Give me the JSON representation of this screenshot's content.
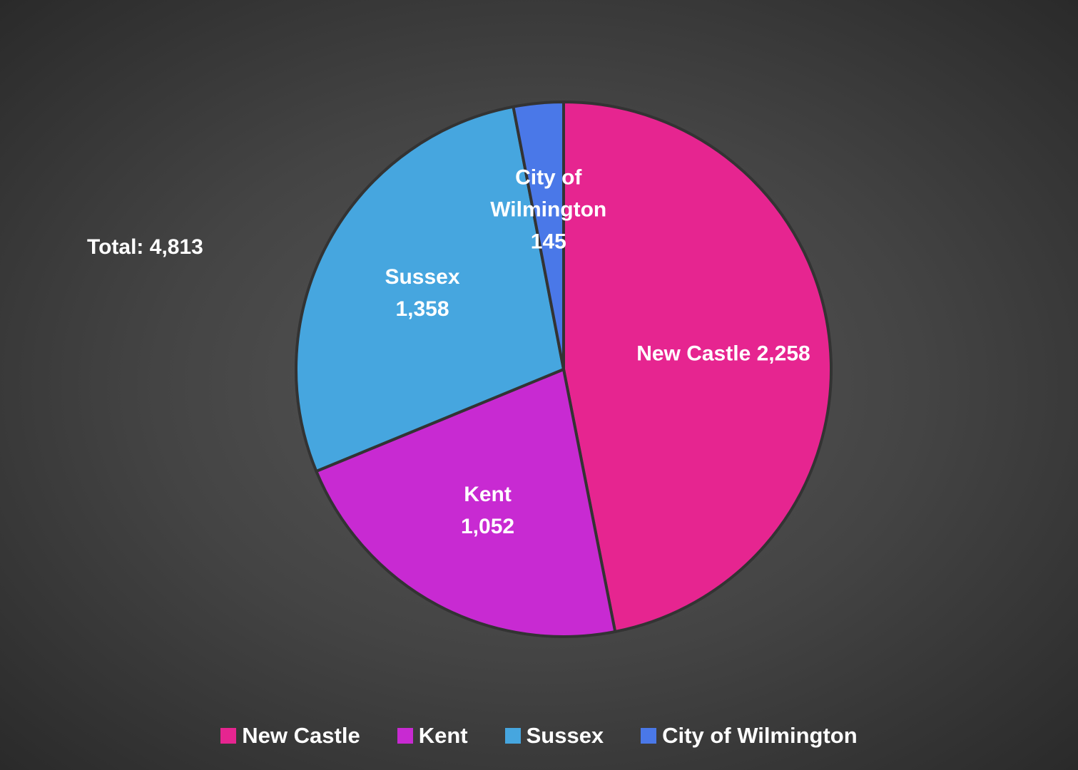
{
  "chart_data": {
    "type": "pie",
    "annotation": "Total: 4,813",
    "categories": [
      "New Castle",
      "Kent",
      "Sussex",
      "City of Wilmington"
    ],
    "values": [
      2258,
      1052,
      1358,
      145
    ],
    "value_labels": [
      "2,258",
      "1,052",
      "1,358",
      "145"
    ],
    "colors": [
      "#e62590",
      "#c82ad2",
      "#46a6df",
      "#4a78e8"
    ],
    "legend": "bottom"
  }
}
